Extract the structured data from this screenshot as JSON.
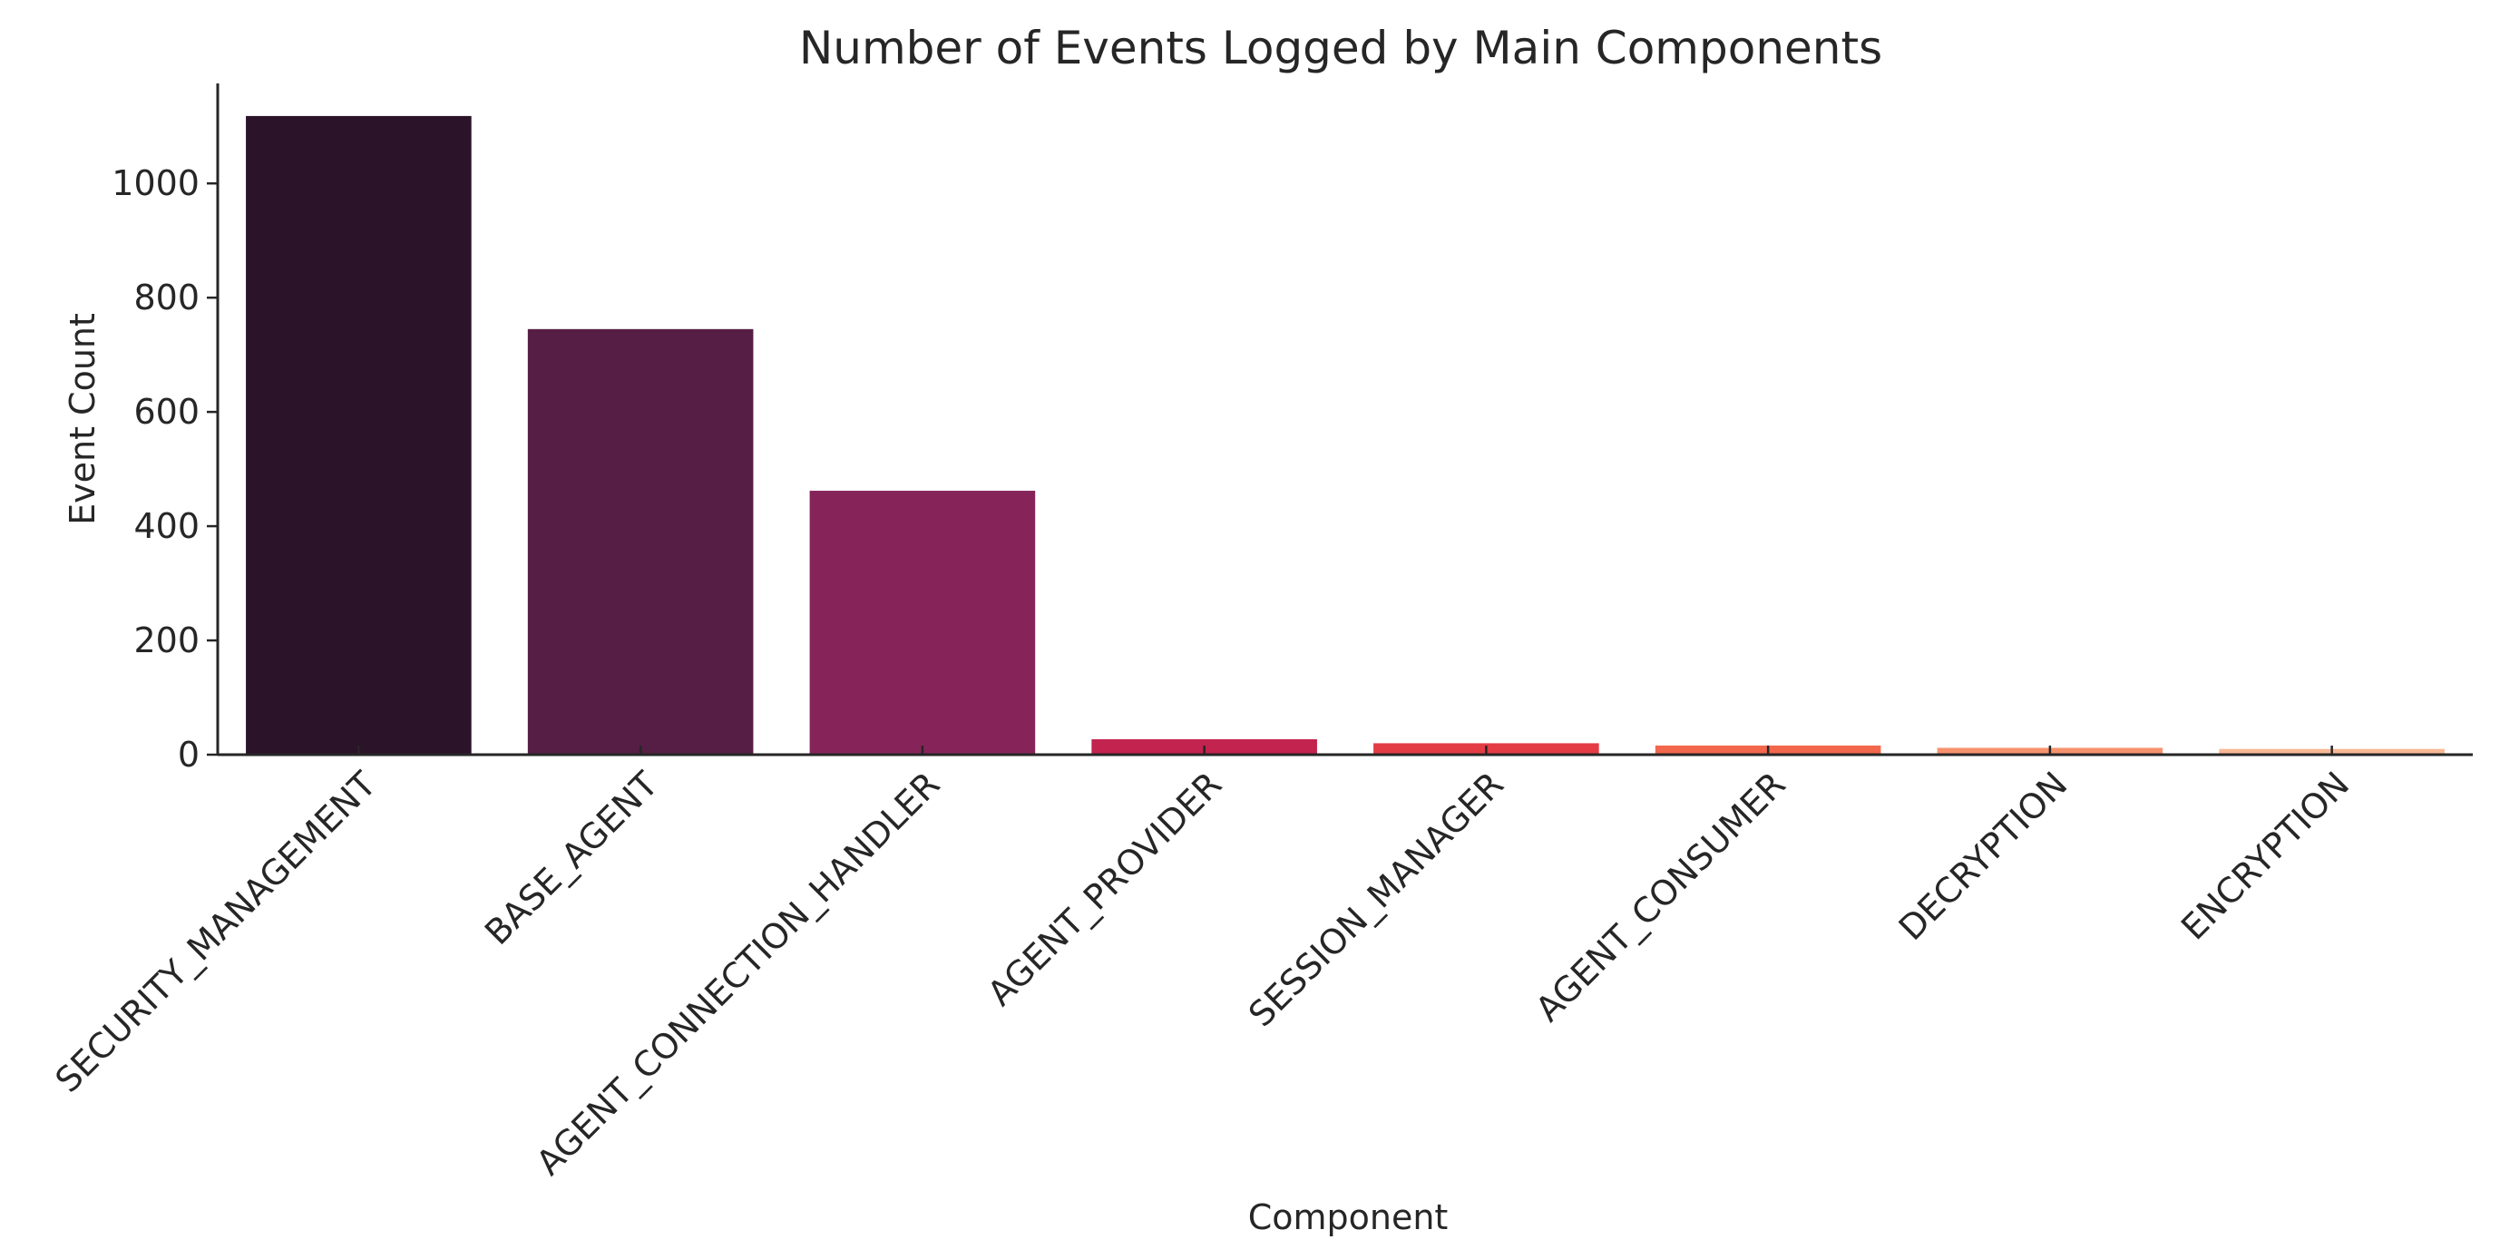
{
  "chart_data": {
    "type": "bar",
    "title": "Number of Events Logged by Main Components",
    "xlabel": "Component",
    "ylabel": "Event Count",
    "categories": [
      "SECURITY_MANAGEMENT",
      "BASE_AGENT",
      "AGENT_CONNECTION_HANDLER",
      "AGENT_PROVIDER",
      "SESSION_MANAGER",
      "AGENT_CONSUMER",
      "DECRYPTION",
      "ENCRYPTION"
    ],
    "values": [
      1118,
      745,
      462,
      27,
      20,
      16,
      12,
      10
    ],
    "colors": [
      "#2b1329",
      "#561e44",
      "#86245a",
      "#c2234f",
      "#e43c45",
      "#f3674c",
      "#f6936e",
      "#f8b895"
    ],
    "yticks": [
      0,
      200,
      400,
      600,
      800,
      1000
    ],
    "ylim": [
      0,
      1175
    ],
    "grid": false,
    "legend": false
  }
}
